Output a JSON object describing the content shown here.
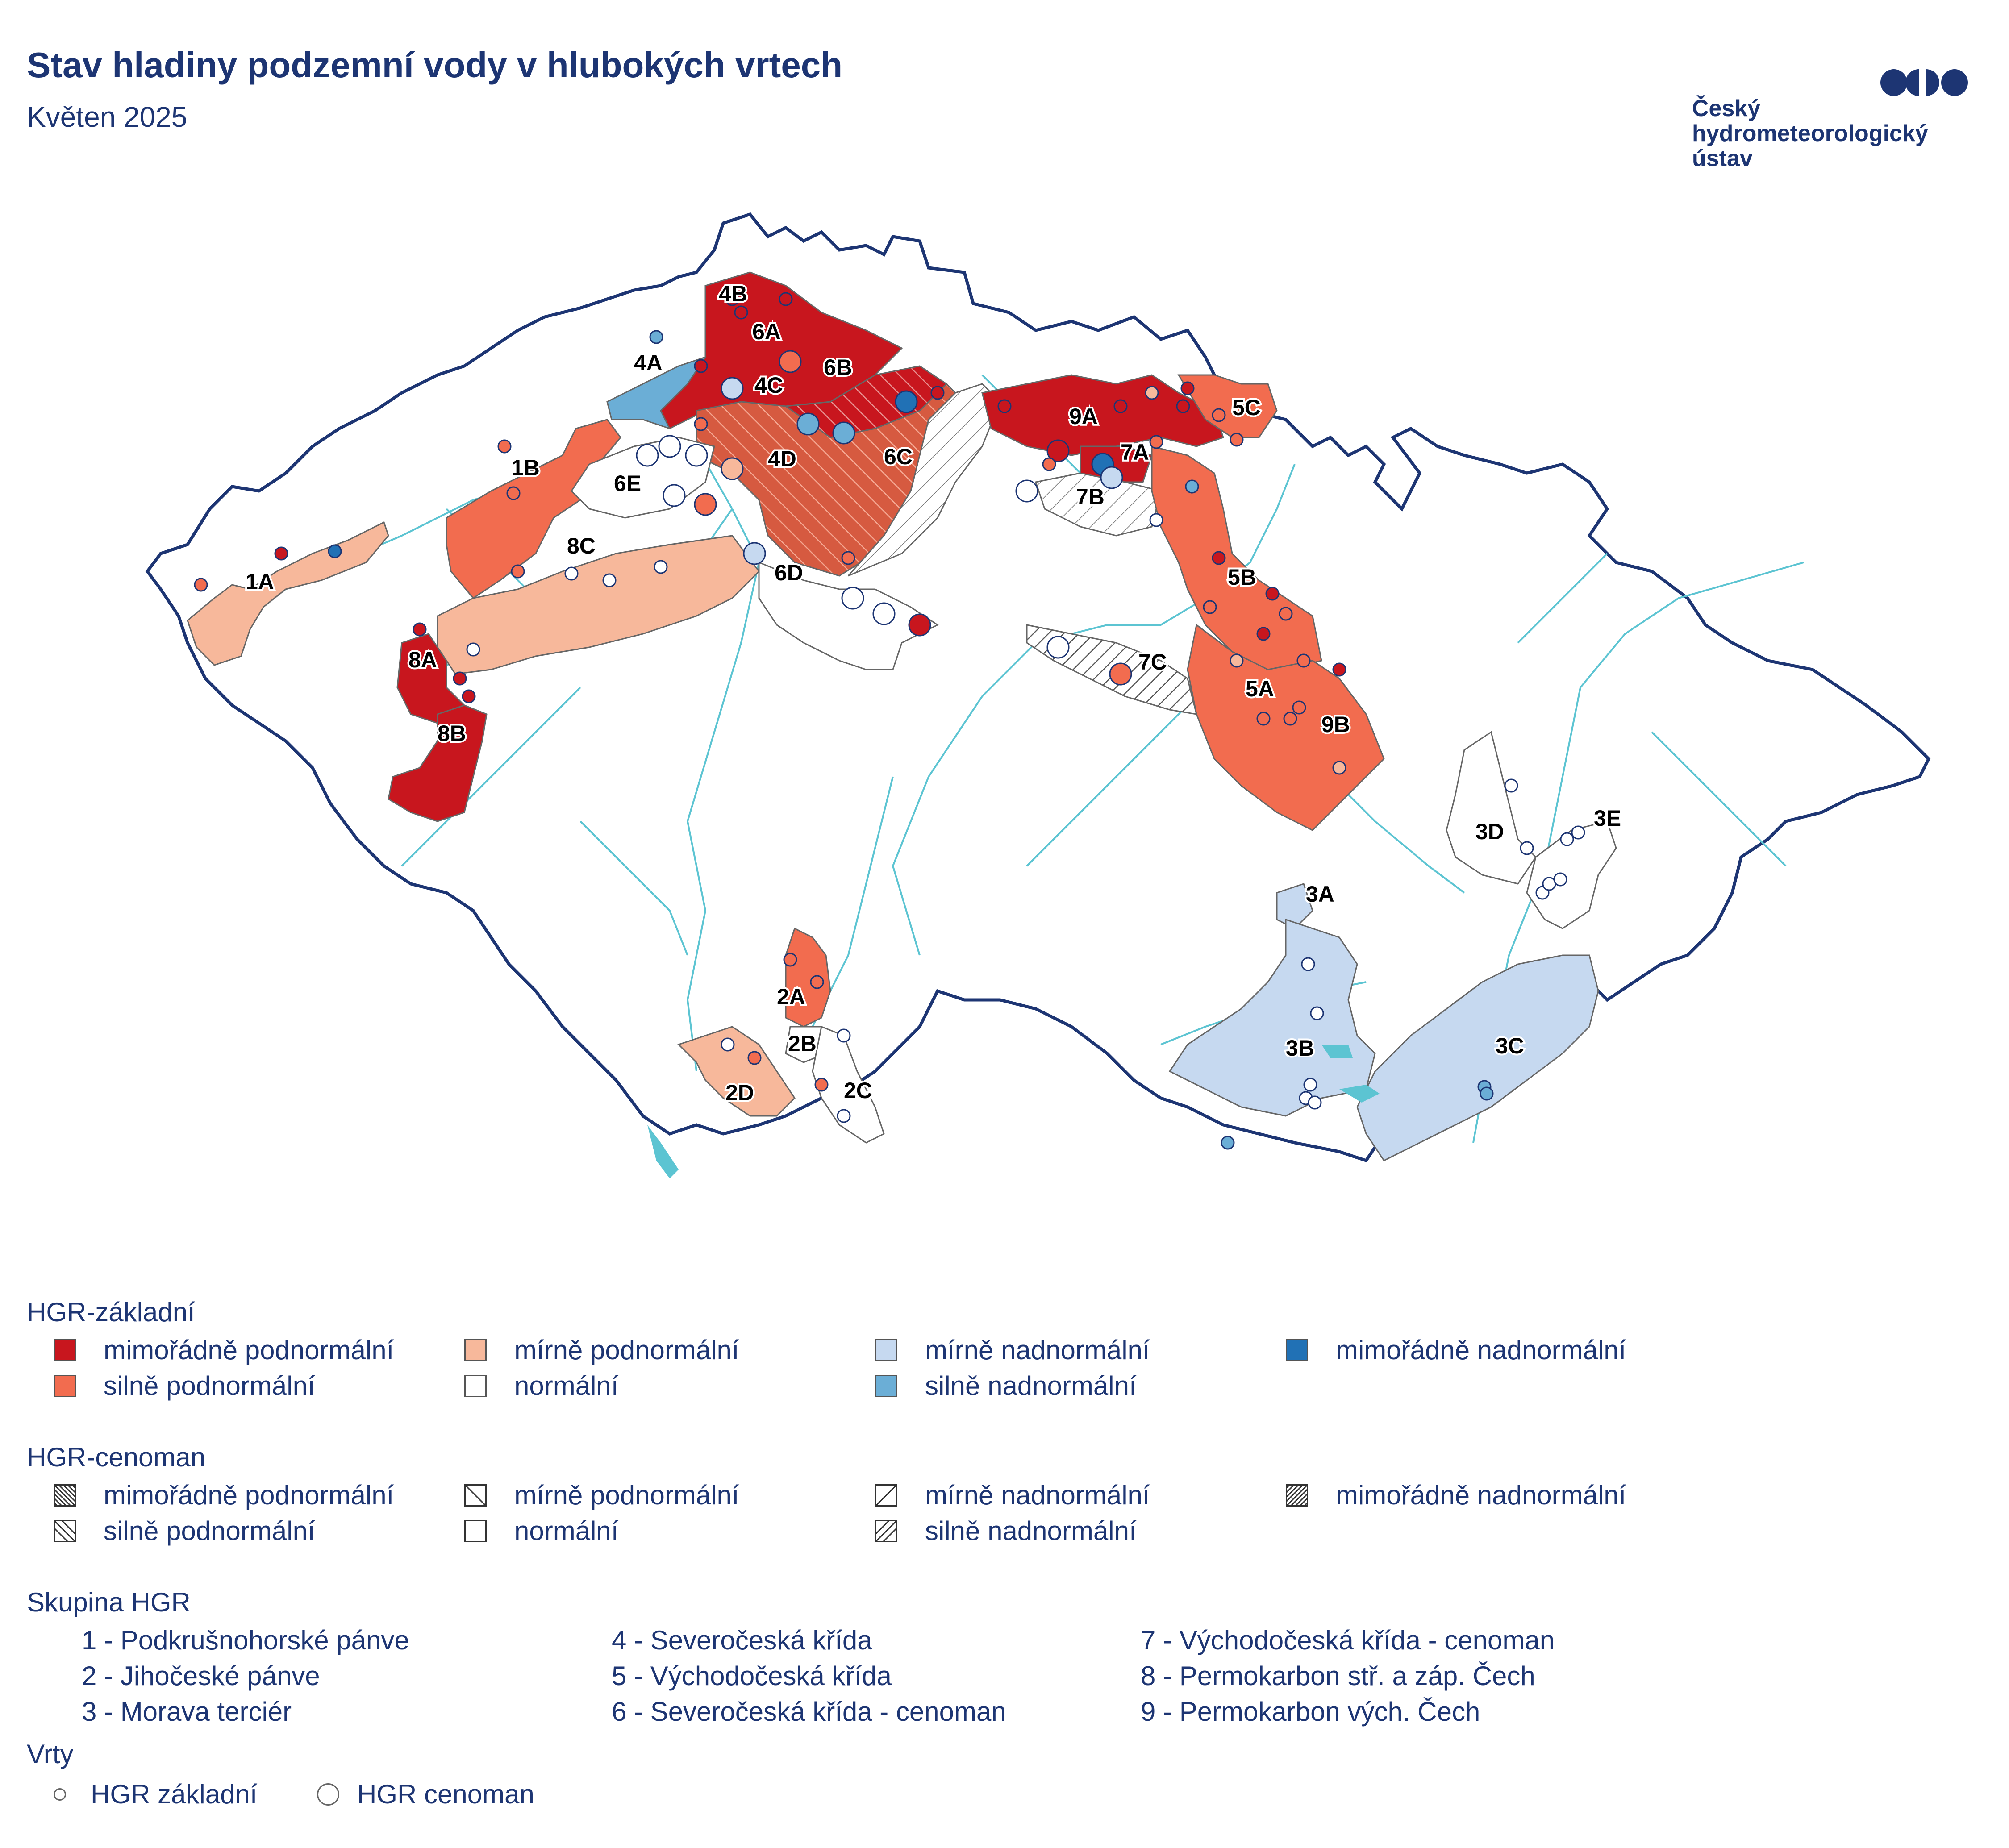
{
  "header": {
    "title": "Stav hladiny podzemní vody v hlubokých vrtech",
    "subtitle": "Květen 2025"
  },
  "logo": {
    "line1": "Český",
    "line2": "hydrometeorologický",
    "line3": "ústav",
    "color": "#1d3573"
  },
  "colors": {
    "mimoradne_podnormalni": "#c8161e",
    "silne_podnormalni": "#f26c4f",
    "mirne_podnormalni": "#f7b89b",
    "normalni": "#ffffff",
    "mirne_nadnormalni": "#c6d9f0",
    "silne_nadnormalni": "#6baed6",
    "mimoradne_nadnormalni": "#2171b5",
    "border": "#1d3573",
    "river": "#5cc4d2"
  },
  "map_labels": [
    "1A",
    "1B",
    "8C",
    "6E",
    "4A",
    "4B",
    "6A",
    "4C",
    "6B",
    "4D",
    "6C",
    "9A",
    "5C",
    "7A",
    "7B",
    "6D",
    "5B",
    "7C",
    "5A",
    "9B",
    "8A",
    "8B",
    "3D",
    "3E",
    "3A",
    "2A",
    "2B",
    "2C",
    "2D",
    "3B",
    "3C"
  ],
  "legend": {
    "basic": {
      "heading": "HGR-základní",
      "items": [
        "mimořádně podnormální",
        "silně podnormální",
        "mírně podnormální",
        "normální",
        "mírně nadnormální",
        "silně nadnormální",
        "mimořádně nadnormální"
      ]
    },
    "cenoman": {
      "heading": "HGR-cenoman",
      "items": [
        "mimořádně podnormální",
        "silně podnormální",
        "mírně podnormální",
        "normální",
        "mírně nadnormální",
        "silně nadnormální",
        "mimořádně nadnormální"
      ]
    },
    "groups": {
      "heading": "Skupina HGR",
      "items": [
        "1 - Podkrušnohorské pánve",
        "2 - Jihočeské pánve",
        "3 - Morava terciér",
        "4 - Severočeská křída",
        "5 - Východočeská křída",
        "6 - Severočeská křída - cenoman",
        "7 - Východočeská křída - cenoman",
        "8 - Permokarbon stř. a záp. Čech",
        "9 - Permokarbon vých. Čech"
      ]
    },
    "wells": {
      "heading": "Vrty",
      "items": [
        "HGR základní",
        "HGR cenoman"
      ]
    }
  }
}
